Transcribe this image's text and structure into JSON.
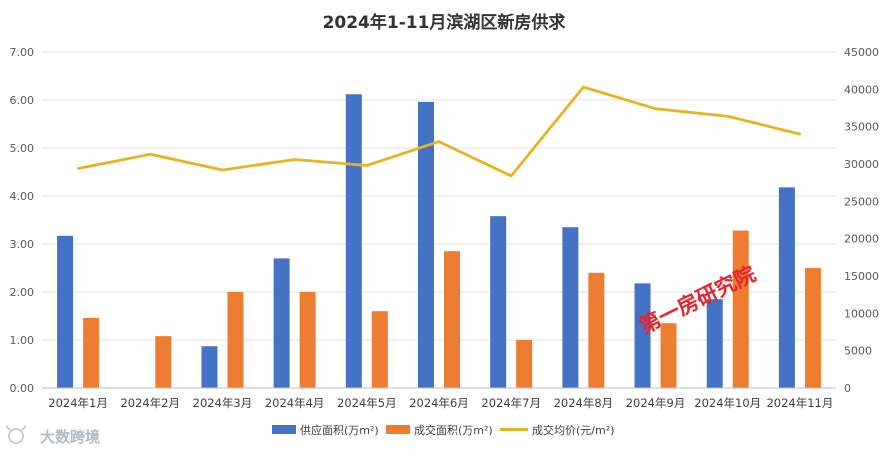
{
  "chart_data": {
    "type": "bar",
    "title": "2024年1-11月滨湖区新房供求",
    "categories": [
      "2024年1月",
      "2024年2月",
      "2024年3月",
      "2024年4月",
      "2024年5月",
      "2024年6月",
      "2024年7月",
      "2024年8月",
      "2024年9月",
      "2024年10月",
      "2024年11月"
    ],
    "series": [
      {
        "name": "供应面积(万m²)",
        "type": "bar",
        "axis": "left",
        "color": "#4472C4",
        "values": [
          3.17,
          0,
          0.87,
          2.7,
          6.12,
          5.96,
          3.58,
          3.35,
          2.18,
          1.85,
          4.18
        ]
      },
      {
        "name": "成交面积(万m²)",
        "type": "bar",
        "axis": "left",
        "color": "#ED7D31",
        "values": [
          1.46,
          1.08,
          2.0,
          2.0,
          1.6,
          2.85,
          1.0,
          2.4,
          1.35,
          3.28,
          2.5
        ]
      },
      {
        "name": "成交均价(元/m²)",
        "type": "line",
        "axis": "right",
        "color": "#E6B422",
        "values": [
          29400,
          31300,
          29200,
          30600,
          29800,
          33000,
          28400,
          40300,
          37400,
          36400,
          34000
        ]
      }
    ],
    "ylim_left": [
      0,
      7
    ],
    "yticks_left": [
      "0.00",
      "1.00",
      "2.00",
      "3.00",
      "4.00",
      "5.00",
      "6.00",
      "7.00"
    ],
    "ylim_right": [
      0,
      45000
    ],
    "yticks_right": [
      "0",
      "5000",
      "10000",
      "15000",
      "20000",
      "25000",
      "30000",
      "35000",
      "40000",
      "45000"
    ],
    "grid": true,
    "legend_position": "bottom"
  },
  "watermark": "第一房研究院",
  "logo_text": "大数跨境"
}
